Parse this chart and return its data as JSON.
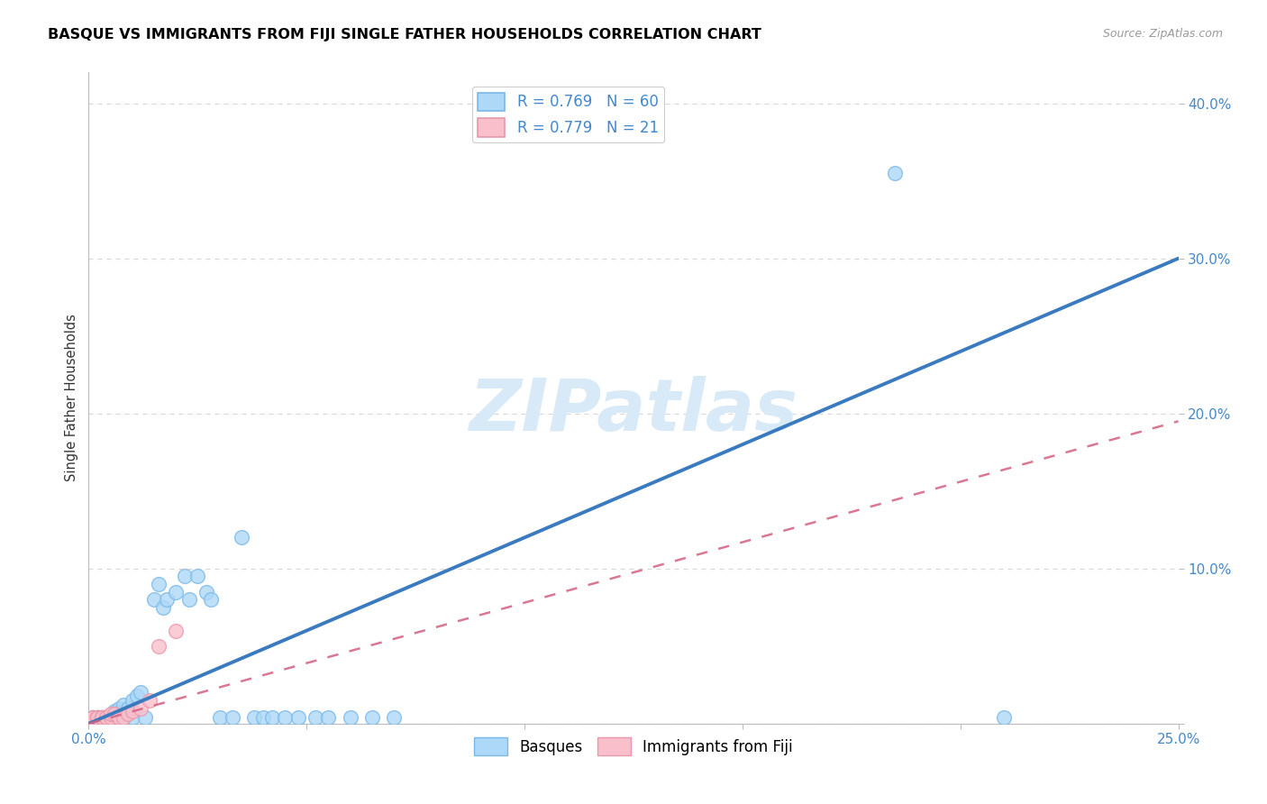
{
  "title": "BASQUE VS IMMIGRANTS FROM FIJI SINGLE FATHER HOUSEHOLDS CORRELATION CHART",
  "source": "Source: ZipAtlas.com",
  "ylabel": "Single Father Households",
  "xlim": [
    0.0,
    0.25
  ],
  "ylim": [
    0.0,
    0.42
  ],
  "basque_R": 0.769,
  "basque_N": 60,
  "fiji_R": 0.779,
  "fiji_N": 21,
  "blue_scatter_face": "#add8f7",
  "blue_scatter_edge": "#7ab8e8",
  "pink_scatter_face": "#f9c0cc",
  "pink_scatter_edge": "#e898aa",
  "blue_line_color": "#3a7abf",
  "pink_line_color": "#d46080",
  "watermark_color": "#d8eaf8",
  "title_fontsize": 11.5,
  "source_fontsize": 9,
  "tick_label_color": "#4488cc",
  "ylabel_color": "#333333",
  "grid_color": "#d8d8d8",
  "x_only_endpoints": true,
  "x_tick_vals": [
    0.0,
    0.05,
    0.1,
    0.15,
    0.2,
    0.25
  ],
  "x_tick_labels": [
    "0.0%",
    "",
    "",
    "",
    "",
    "25.0%"
  ],
  "y_tick_vals": [
    0.0,
    0.1,
    0.2,
    0.3,
    0.4
  ],
  "y_tick_labels": [
    "",
    "10.0%",
    "20.0%",
    "30.0%",
    "40.0%"
  ],
  "blue_line_x": [
    0.0,
    0.25
  ],
  "blue_line_y": [
    0.0,
    0.3
  ],
  "pink_line_x": [
    0.0,
    0.25
  ],
  "pink_line_y": [
    0.0,
    0.195
  ],
  "basque_x": [
    0.001,
    0.001,
    0.001,
    0.001,
    0.002,
    0.002,
    0.002,
    0.002,
    0.002,
    0.003,
    0.003,
    0.003,
    0.003,
    0.003,
    0.004,
    0.004,
    0.004,
    0.004,
    0.005,
    0.005,
    0.005,
    0.005,
    0.006,
    0.006,
    0.006,
    0.007,
    0.007,
    0.008,
    0.008,
    0.009,
    0.01,
    0.01,
    0.011,
    0.012,
    0.013,
    0.015,
    0.016,
    0.017,
    0.018,
    0.02,
    0.022,
    0.023,
    0.025,
    0.027,
    0.028,
    0.03,
    0.033,
    0.035,
    0.038,
    0.04,
    0.042,
    0.045,
    0.048,
    0.052,
    0.055,
    0.06,
    0.065,
    0.07,
    0.185,
    0.21
  ],
  "basque_y": [
    0.004,
    0.004,
    0.004,
    0.004,
    0.004,
    0.004,
    0.004,
    0.004,
    0.004,
    0.004,
    0.004,
    0.004,
    0.004,
    0.004,
    0.004,
    0.004,
    0.004,
    0.004,
    0.004,
    0.004,
    0.004,
    0.004,
    0.004,
    0.004,
    0.008,
    0.006,
    0.01,
    0.008,
    0.012,
    0.01,
    0.015,
    0.004,
    0.018,
    0.02,
    0.004,
    0.08,
    0.09,
    0.075,
    0.08,
    0.085,
    0.095,
    0.08,
    0.095,
    0.085,
    0.08,
    0.004,
    0.004,
    0.12,
    0.004,
    0.004,
    0.004,
    0.004,
    0.004,
    0.004,
    0.004,
    0.004,
    0.004,
    0.004,
    0.355,
    0.004
  ],
  "fiji_x": [
    0.001,
    0.001,
    0.002,
    0.002,
    0.002,
    0.003,
    0.003,
    0.003,
    0.004,
    0.004,
    0.005,
    0.005,
    0.006,
    0.007,
    0.008,
    0.009,
    0.01,
    0.012,
    0.014,
    0.016,
    0.02
  ],
  "fiji_y": [
    0.004,
    0.004,
    0.004,
    0.004,
    0.004,
    0.004,
    0.004,
    0.004,
    0.004,
    0.004,
    0.004,
    0.006,
    0.006,
    0.004,
    0.004,
    0.006,
    0.008,
    0.01,
    0.015,
    0.05,
    0.06
  ]
}
